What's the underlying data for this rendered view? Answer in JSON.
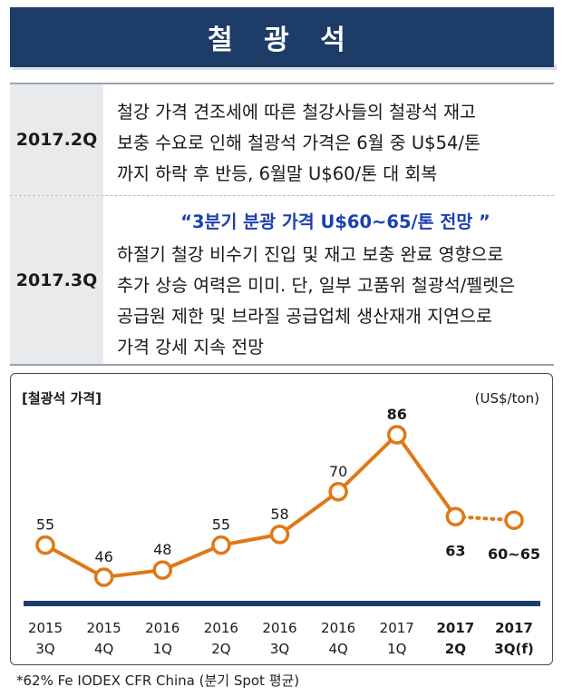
{
  "header": {
    "title": "철 광 석"
  },
  "table": {
    "rows": [
      {
        "period": "2017.2Q",
        "lines": [
          "철강 가격 견조세에 따른 철강사들의  철광석 재고",
          "보충 수요로 인해 철광석 가격은 6월 중 U$54/톤",
          "까지 하락 후 반등, 6월말 U$60/톤 대 회복"
        ]
      },
      {
        "period": "2017.3Q",
        "highlight": "“3분기 분광 가격 U$60~65/톤 전망 ”",
        "lines": [
          "하절기 철강 비수기 진입 및 재고 보충 완료 영향으로",
          "추가 상승 여력은 미미. 단, 일부 고품위 철광석/펠렛은",
          "공급원 제한 및 브라질 공급업체 생산재개 지연으로",
          "가격 강세 지속 전망"
        ]
      }
    ]
  },
  "chart_data": {
    "type": "line",
    "title": "[철광석 가격]",
    "unit": "(US$/ton)",
    "categories": [
      {
        "year": "2015",
        "q": "3Q",
        "bold": false
      },
      {
        "year": "2015",
        "q": "4Q",
        "bold": false
      },
      {
        "year": "2016",
        "q": "1Q",
        "bold": false
      },
      {
        "year": "2016",
        "q": "2Q",
        "bold": false
      },
      {
        "year": "2016",
        "q": "3Q",
        "bold": false
      },
      {
        "year": "2016",
        "q": "4Q",
        "bold": false
      },
      {
        "year": "2017",
        "q": "1Q",
        "bold": false
      },
      {
        "year": "2017",
        "q": "2Q",
        "bold": true
      },
      {
        "year": "2017",
        "q": "3Q(f)",
        "bold": true
      }
    ],
    "values": [
      55,
      46,
      48,
      55,
      58,
      70,
      86,
      63,
      62
    ],
    "labels": [
      "55",
      "46",
      "48",
      "55",
      "58",
      "70",
      "86",
      "63",
      "60~65"
    ],
    "forecast_from_index": 7,
    "line_color": "#e07817",
    "axis_color": "#1e3c68"
  },
  "footnote": "*62% Fe IODEX CFR China (분기 Spot 평균)"
}
